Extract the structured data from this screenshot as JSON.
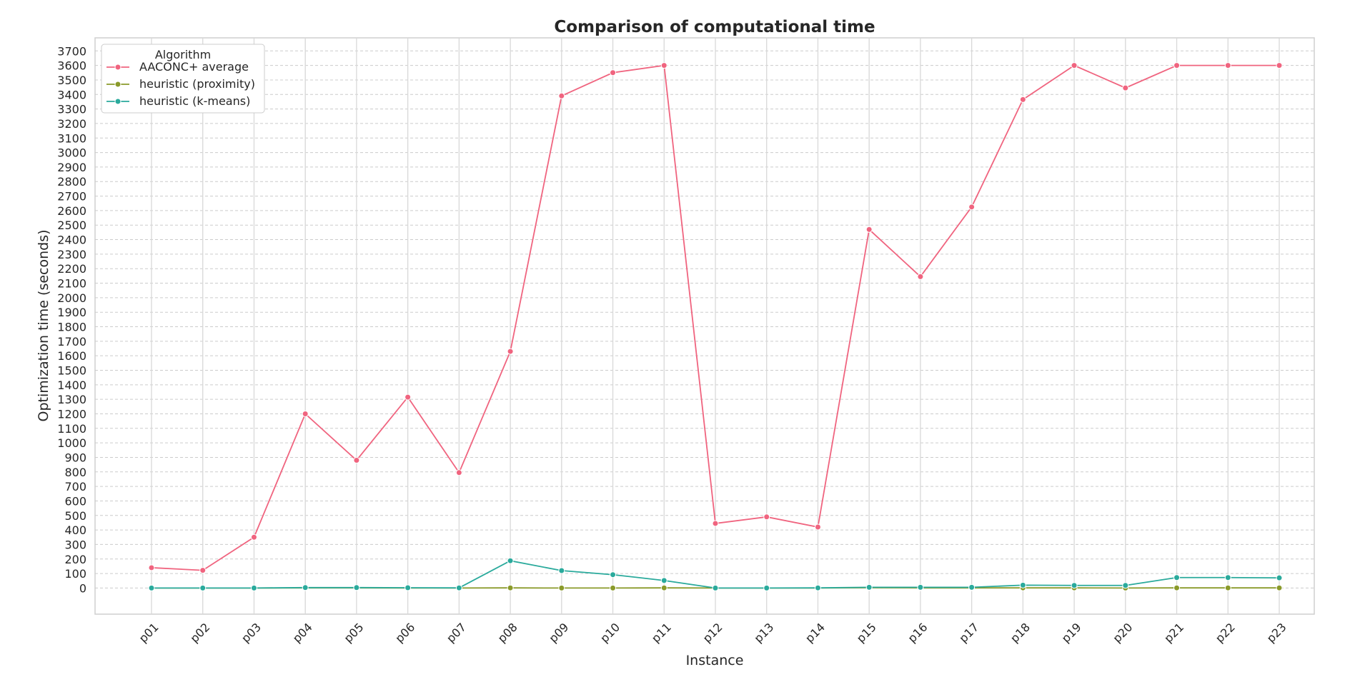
{
  "chart_data": {
    "type": "line",
    "title": "Comparison of computational time",
    "xlabel": "Instance",
    "ylabel": "Optimization time (seconds)",
    "categories": [
      "p01",
      "p02",
      "p03",
      "p04",
      "p05",
      "p06",
      "p07",
      "p08",
      "p09",
      "p10",
      "p11",
      "p12",
      "p13",
      "p14",
      "p15",
      "p16",
      "p17",
      "p18",
      "p19",
      "p20",
      "p21",
      "p22",
      "p23"
    ],
    "yticks": [
      0,
      100,
      200,
      300,
      400,
      500,
      600,
      700,
      800,
      900,
      1000,
      1100,
      1200,
      1300,
      1400,
      1500,
      1600,
      1700,
      1800,
      1900,
      2000,
      2100,
      2200,
      2300,
      2400,
      2500,
      2600,
      2700,
      2800,
      2900,
      3000,
      3100,
      3200,
      3300,
      3400,
      3500,
      3600,
      3700
    ],
    "ylim": [
      -180,
      3790
    ],
    "grid": true,
    "legend": {
      "title": "Algorithm",
      "placement": "top-left"
    },
    "series": [
      {
        "name": "AACONC+ average",
        "color": "#f0647f",
        "values": [
          140,
          122,
          350,
          1200,
          880,
          1315,
          795,
          1630,
          3390,
          3550,
          3600,
          445,
          490,
          420,
          2470,
          2145,
          2625,
          3365,
          3600,
          3445,
          3600,
          3600,
          3600
        ]
      },
      {
        "name": "heuristic (proximity)",
        "color": "#8a9a2a",
        "values": [
          0,
          0,
          0,
          1,
          1,
          0,
          0,
          1,
          0,
          0,
          1,
          0,
          0,
          0,
          2,
          1,
          1,
          1,
          1,
          0,
          1,
          1,
          1
        ]
      },
      {
        "name": "heuristic (k-means)",
        "color": "#2aaa9c",
        "values": [
          0,
          0,
          0,
          3,
          3,
          2,
          1,
          188,
          120,
          92,
          52,
          0,
          0,
          1,
          5,
          5,
          5,
          20,
          18,
          18,
          72,
          72,
          70
        ]
      }
    ]
  }
}
